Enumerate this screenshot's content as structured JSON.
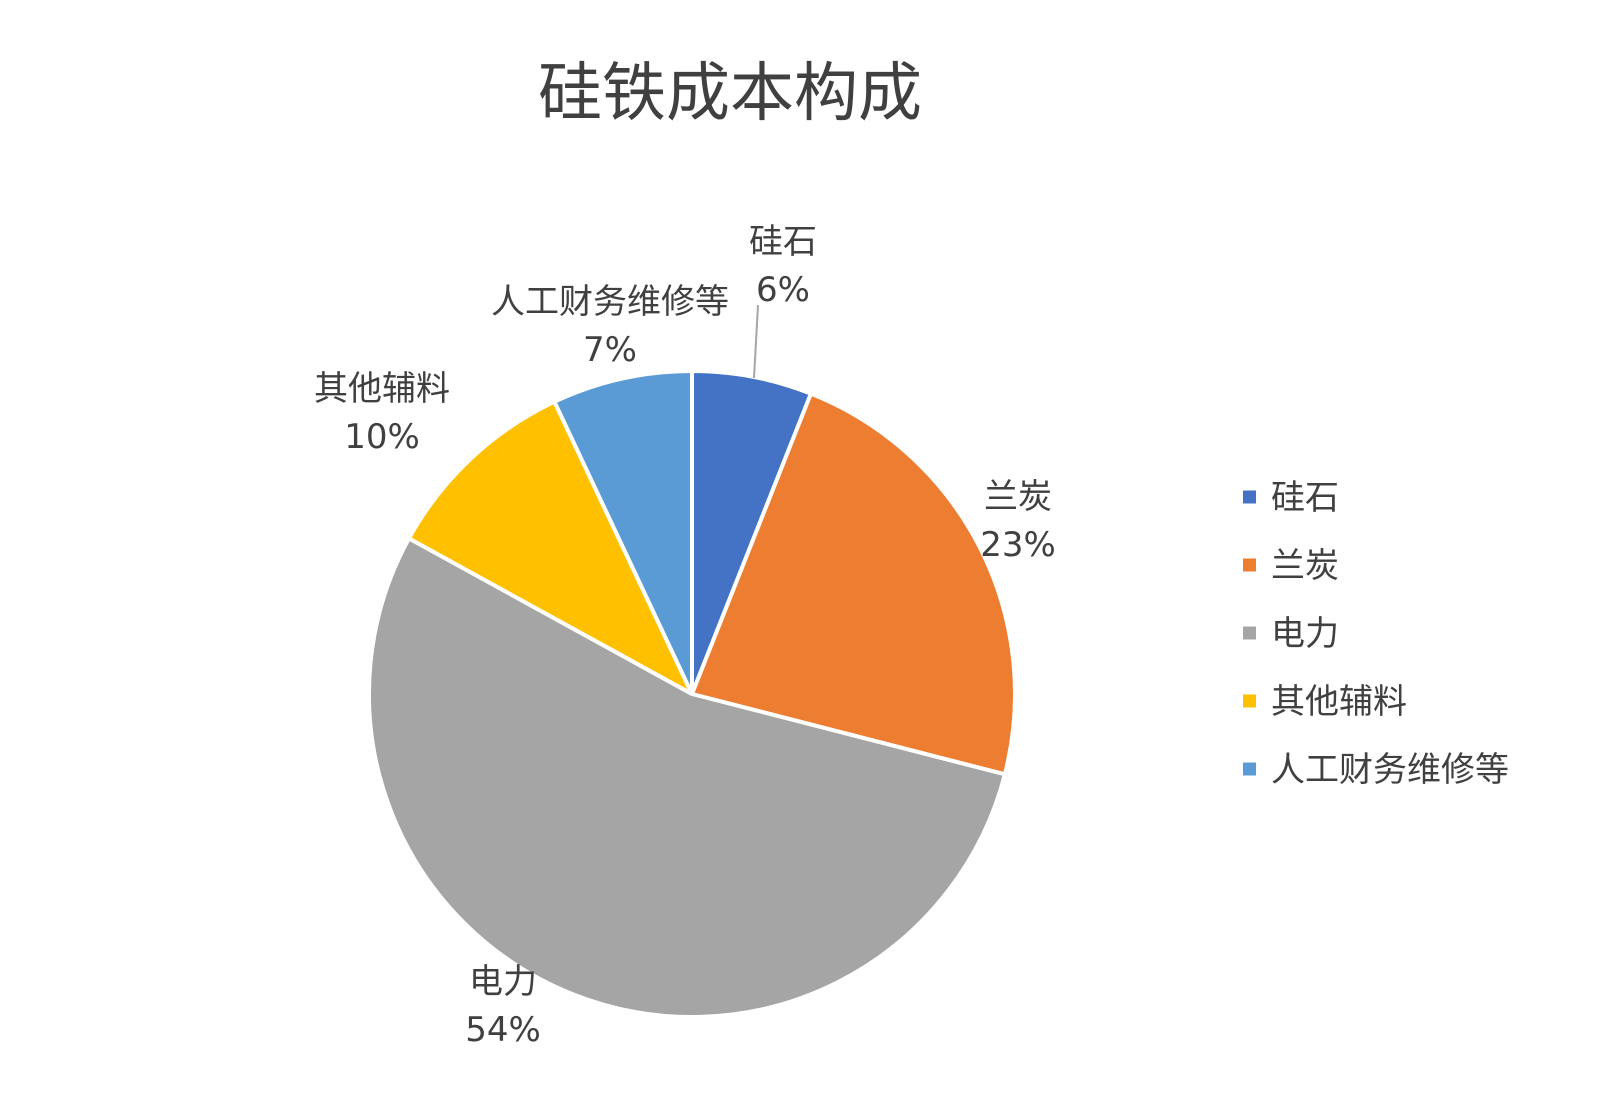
{
  "chart_data": {
    "type": "pie",
    "title": "硅铁成本构成",
    "categories": [
      "硅石",
      "兰炭",
      "电力",
      "其他辅料",
      "人工财务维修等"
    ],
    "values": [
      6,
      23,
      54,
      10,
      7
    ],
    "data_labels": [
      "6%",
      "23%",
      "54%",
      "10%",
      "7%"
    ],
    "colors": [
      "#4472C4",
      "#ED7D31",
      "#A5A5A5",
      "#FFC000",
      "#5B9BD5"
    ],
    "start_angle": "12 o'clock",
    "direction": "clockwise",
    "legend_position": "right"
  }
}
